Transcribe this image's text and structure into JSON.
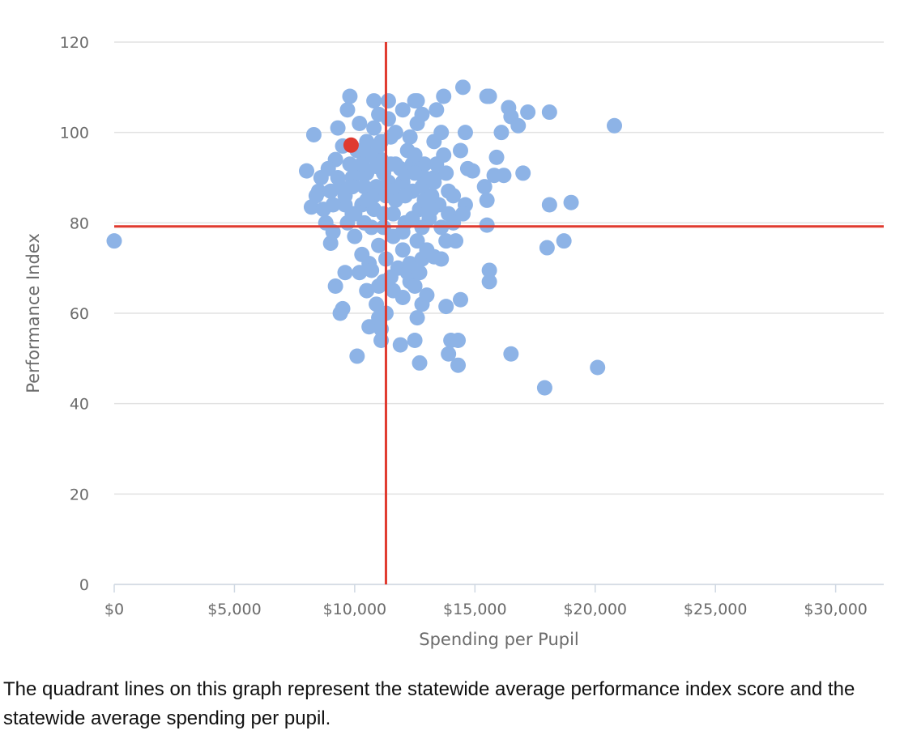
{
  "chart_data": {
    "type": "scatter",
    "xlabel": "Spending per Pupil",
    "ylabel": "Performance Index",
    "xlim": [
      0,
      32000
    ],
    "ylim": [
      0,
      120
    ],
    "x_ticks": [
      0,
      5000,
      10000,
      15000,
      20000,
      25000,
      30000
    ],
    "x_tick_labels": [
      "$0",
      "$5,000",
      "$10,000",
      "$15,000",
      "$20,000",
      "$25,000",
      "$30,000"
    ],
    "y_ticks": [
      0,
      20,
      40,
      60,
      80,
      100,
      120
    ],
    "y_tick_labels": [
      "0",
      "20",
      "40",
      "60",
      "80",
      "100",
      "120"
    ],
    "grid": "horizontal",
    "quadrant_lines": {
      "x": 11300,
      "y": 79.2,
      "color": "#e03a2f"
    },
    "colors": {
      "points": "#8db3e6",
      "highlight": "#e03a2f",
      "grid": "#e2e2e2",
      "axis_text": "#6b6b6b"
    },
    "series": [
      {
        "values": [
          [
            0,
            76
          ],
          [
            8000,
            91.5
          ],
          [
            8300,
            99.5
          ],
          [
            8200,
            83.5
          ],
          [
            8500,
            87
          ],
          [
            8800,
            80
          ],
          [
            9000,
            75.5
          ],
          [
            9200,
            66
          ],
          [
            9400,
            60
          ],
          [
            9500,
            61
          ],
          [
            9600,
            69
          ],
          [
            9300,
            101
          ],
          [
            9700,
            105
          ],
          [
            9800,
            108
          ],
          [
            10100,
            50.5
          ],
          [
            10200,
            69
          ],
          [
            10500,
            65
          ],
          [
            10600,
            57
          ],
          [
            10900,
            62
          ],
          [
            11000,
            59
          ],
          [
            11100,
            56.5
          ],
          [
            11100,
            54
          ],
          [
            11300,
            60
          ],
          [
            10800,
            107
          ],
          [
            11000,
            104
          ],
          [
            11400,
            107
          ],
          [
            11600,
            65
          ],
          [
            11900,
            53
          ],
          [
            12000,
            63.5
          ],
          [
            12300,
            67
          ],
          [
            12500,
            54
          ],
          [
            12600,
            59
          ],
          [
            12700,
            49
          ],
          [
            12800,
            62
          ],
          [
            13000,
            64
          ],
          [
            12500,
            107
          ],
          [
            12600,
            107
          ],
          [
            13400,
            105
          ],
          [
            13700,
            108
          ],
          [
            13900,
            87
          ],
          [
            13800,
            61.5
          ],
          [
            13900,
            51
          ],
          [
            14000,
            54
          ],
          [
            14300,
            54
          ],
          [
            14300,
            48.5
          ],
          [
            14400,
            63
          ],
          [
            14200,
            76
          ],
          [
            14500,
            110
          ],
          [
            14600,
            100
          ],
          [
            14700,
            92
          ],
          [
            14900,
            91.5
          ],
          [
            15500,
            108
          ],
          [
            15600,
            108
          ],
          [
            15400,
            88
          ],
          [
            15500,
            85
          ],
          [
            15500,
            79.5
          ],
          [
            15600,
            67
          ],
          [
            15600,
            69.5
          ],
          [
            15900,
            94.5
          ],
          [
            16100,
            100
          ],
          [
            15800,
            90.5
          ],
          [
            16200,
            90.5
          ],
          [
            16400,
            105.5
          ],
          [
            16500,
            103.5
          ],
          [
            16500,
            51
          ],
          [
            16800,
            101.5
          ],
          [
            17000,
            91
          ],
          [
            17200,
            104.5
          ],
          [
            17900,
            43.5
          ],
          [
            18000,
            74.5
          ],
          [
            18100,
            104.5
          ],
          [
            18100,
            84
          ],
          [
            18700,
            76
          ],
          [
            19000,
            84.5
          ],
          [
            20100,
            48
          ],
          [
            20800,
            101.5
          ],
          [
            9000,
            87
          ],
          [
            9200,
            94
          ],
          [
            9600,
            84
          ],
          [
            9900,
            90
          ],
          [
            10100,
            96
          ],
          [
            10300,
            84
          ],
          [
            10500,
            91
          ],
          [
            10700,
            79
          ],
          [
            10900,
            88
          ],
          [
            11100,
            94
          ],
          [
            11200,
            82
          ],
          [
            11400,
            89
          ],
          [
            11500,
            99
          ],
          [
            11700,
            85
          ],
          [
            11900,
            92
          ],
          [
            12100,
            80
          ],
          [
            12200,
            96
          ],
          [
            12400,
            87
          ],
          [
            12600,
            102
          ],
          [
            12700,
            83
          ],
          [
            12900,
            93
          ],
          [
            13100,
            81
          ],
          [
            13300,
            90
          ],
          [
            13500,
            84
          ],
          [
            13700,
            95
          ],
          [
            13900,
            82
          ],
          [
            14100,
            86
          ],
          [
            14400,
            96
          ],
          [
            14600,
            84
          ],
          [
            8700,
            83
          ],
          [
            9100,
            78
          ],
          [
            9400,
            88
          ],
          [
            9700,
            80
          ],
          [
            10000,
            77
          ],
          [
            10300,
            73
          ],
          [
            10600,
            71
          ],
          [
            11000,
            75
          ],
          [
            11300,
            72
          ],
          [
            11600,
            77
          ],
          [
            11800,
            70
          ],
          [
            12000,
            74
          ],
          [
            12300,
            71
          ],
          [
            12600,
            76
          ],
          [
            12800,
            72
          ],
          [
            13300,
            72.5
          ],
          [
            13600,
            72
          ],
          [
            13800,
            76
          ],
          [
            10200,
            102
          ],
          [
            10500,
            98
          ],
          [
            10800,
            101
          ],
          [
            11100,
            98
          ],
          [
            11400,
            103
          ],
          [
            11700,
            100
          ],
          [
            12000,
            105
          ],
          [
            12300,
            99
          ],
          [
            12800,
            104
          ],
          [
            13300,
            98
          ],
          [
            13600,
            100
          ],
          [
            9500,
            97
          ],
          [
            9800,
            93
          ],
          [
            10400,
            88
          ],
          [
            10800,
            86
          ],
          [
            11200,
            91
          ],
          [
            11600,
            87
          ],
          [
            12000,
            89
          ],
          [
            12400,
            93
          ],
          [
            12800,
            88
          ],
          [
            13200,
            86
          ],
          [
            10000,
            82
          ],
          [
            10400,
            80
          ],
          [
            10800,
            83
          ],
          [
            11200,
            79
          ],
          [
            11600,
            82
          ],
          [
            12000,
            78
          ],
          [
            12400,
            81
          ],
          [
            12800,
            79
          ],
          [
            13200,
            83
          ],
          [
            13600,
            79
          ],
          [
            8400,
            86
          ],
          [
            8600,
            90
          ],
          [
            8900,
            92
          ],
          [
            9100,
            84
          ],
          [
            9300,
            90
          ],
          [
            9600,
            86
          ],
          [
            9900,
            82
          ],
          [
            10200,
            91
          ],
          [
            10600,
            95
          ],
          [
            11000,
            97
          ],
          [
            11500,
            93
          ],
          [
            12100,
            91
          ],
          [
            12500,
            95
          ],
          [
            12900,
            90
          ],
          [
            13400,
            93
          ],
          [
            13800,
            91
          ],
          [
            14100,
            80
          ],
          [
            14500,
            82
          ],
          [
            11200,
            67
          ],
          [
            11500,
            68
          ],
          [
            12200,
            69
          ],
          [
            12500,
            66
          ],
          [
            10700,
            69.5
          ],
          [
            11000,
            66
          ],
          [
            12700,
            69
          ],
          [
            13000,
            74
          ],
          [
            10500,
            85
          ],
          [
            10900,
            92.5
          ],
          [
            11300,
            86
          ],
          [
            11700,
            93
          ],
          [
            12100,
            86
          ],
          [
            12500,
            91
          ],
          [
            12900,
            85
          ],
          [
            13300,
            89
          ],
          [
            9900,
            88
          ],
          [
            10300,
            93
          ]
        ]
      }
    ],
    "highlight_point": [
      9850,
      97.2
    ]
  },
  "caption": "The quadrant lines on this graph represent the statewide average performance index score and the statewide average spending per pupil."
}
